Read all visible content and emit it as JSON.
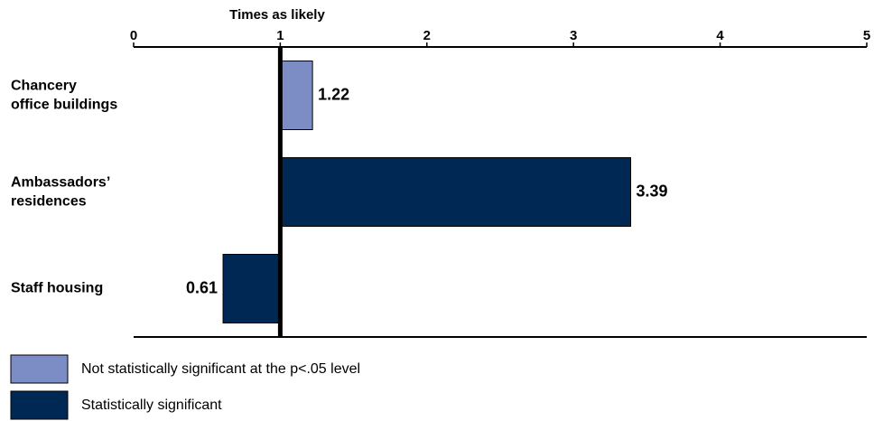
{
  "chart_data": {
    "type": "hbar",
    "x_label": "Times as likely",
    "categories": [
      "Chancery\noffice buildings",
      "Ambassadors’\nresidences",
      "Staff housing"
    ],
    "series": [
      {
        "name": "Not statistically significant at the p<.05 level",
        "color": "#7b8dc4",
        "values": [
          1.22,
          null,
          null
        ]
      },
      {
        "name": "Statistically significant",
        "color": "#002855",
        "values": [
          null,
          3.39,
          0.61
        ]
      }
    ],
    "xlim": [
      0,
      5
    ],
    "xticks": [
      0,
      1,
      2,
      3,
      4,
      5
    ],
    "baseline": 1
  }
}
